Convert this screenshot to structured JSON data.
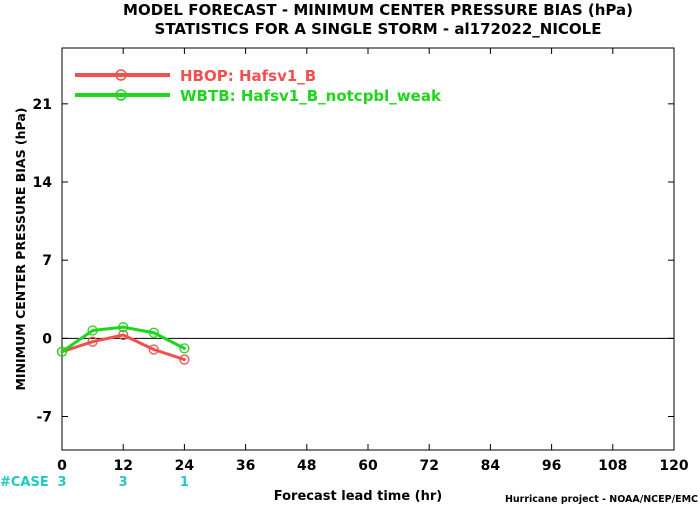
{
  "chart_data": {
    "type": "line",
    "title": "MODEL FORECAST - MINIMUM CENTER PRESSURE BIAS (hPa)",
    "subtitle": "STATISTICS FOR A SINGLE STORM - al172022_NICOLE",
    "xlabel": "Forecast lead time (hr)",
    "ylabel": "MINIMUM CENTER PRESSURE BIAS (hPa)",
    "xlim": [
      0,
      120
    ],
    "ylim": [
      -10,
      26
    ],
    "x_ticks": [
      0,
      12,
      24,
      36,
      48,
      60,
      72,
      84,
      96,
      108,
      120
    ],
    "y_ticks": [
      -7,
      0,
      7,
      14,
      21
    ],
    "zero_line": true,
    "legend_position": "top-left",
    "series": [
      {
        "name": "HBOP: Hafsv1_B",
        "color": "#f0514f",
        "x": [
          0,
          6,
          12,
          18,
          24
        ],
        "y": [
          -1.2,
          -0.3,
          0.3,
          -1.0,
          -1.9
        ]
      },
      {
        "name": "WBTB: Hafsv1_B_notcpbl_weak",
        "color": "#1fd61f",
        "x": [
          0,
          6,
          12,
          18,
          24
        ],
        "y": [
          -1.2,
          0.7,
          1.0,
          0.5,
          -0.9
        ]
      }
    ],
    "case_label": "#CASE",
    "case_counts": [
      {
        "x": 0,
        "count": "3"
      },
      {
        "x": 12,
        "count": "3"
      },
      {
        "x": 24,
        "count": "1"
      }
    ],
    "case_color": "#1ec8c8",
    "credit": "Hurricane project - NOAA/NCEP/EMC"
  }
}
